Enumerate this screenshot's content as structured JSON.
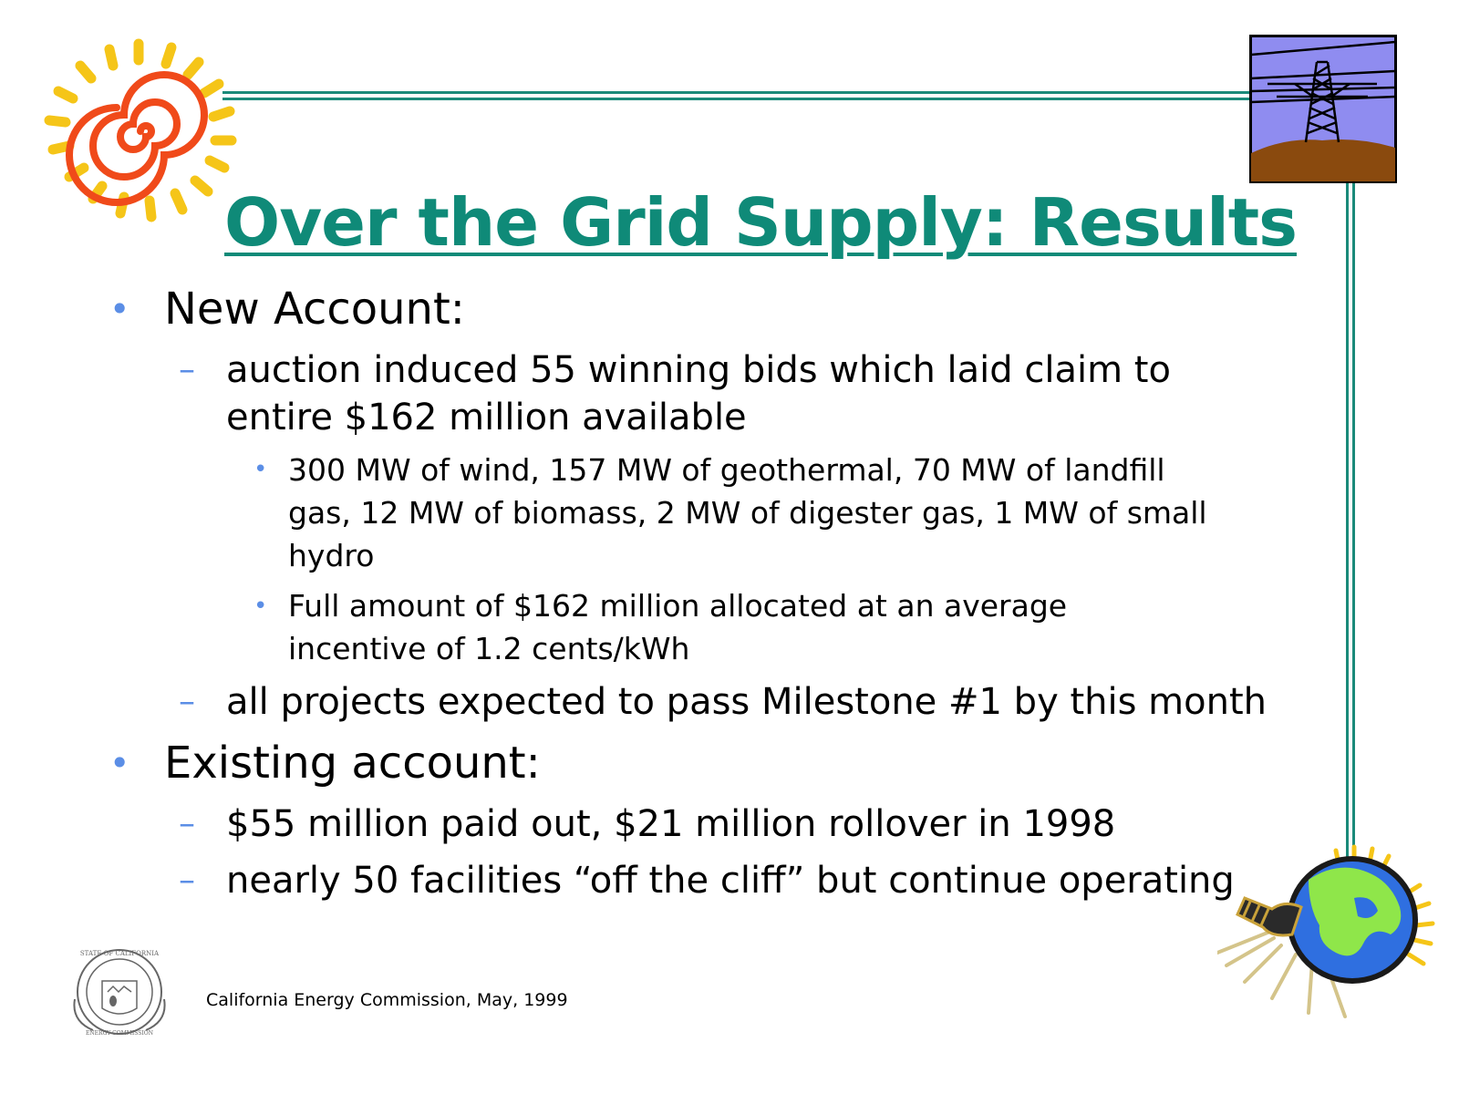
{
  "slide": {
    "title": "Over the Grid Supply: Results",
    "bullets": [
      {
        "text": "New Account:",
        "subs": [
          {
            "lines": [
              "auction induced 55 winning bids which laid claim to",
              "entire $162 million available"
            ],
            "subs": [
              {
                "lines": [
                  "300 MW of wind, 157 MW of geothermal, 70 MW of landfill",
                  "gas, 12 MW of biomass, 2 MW of digester gas, 1 MW of small",
                  "hydro"
                ]
              },
              {
                "lines": [
                  "Full amount of $162 million allocated at an average",
                  "incentive of 1.2 cents/kWh"
                ]
              }
            ]
          },
          {
            "lines": [
              "all projects expected to pass Milestone #1 by this month"
            ]
          }
        ]
      },
      {
        "text": "Existing account:",
        "subs": [
          {
            "lines": [
              "$55 million paid out, $21 million rollover in 1998"
            ]
          },
          {
            "lines": [
              "nearly 50 facilities “off the cliff” but continue operating"
            ]
          }
        ]
      }
    ],
    "footer": "California Energy Commission, May, 1999",
    "seal_text": "STATE OF CALIFORNIA ENERGY COMMISSION"
  },
  "colors": {
    "title": "#0f8a78",
    "bullet": "#5b8ee6",
    "frame": "#1a8a7a"
  },
  "icons": [
    "sun-icon",
    "power-tower-icon",
    "earth-lightbulb-icon",
    "state-seal-icon"
  ]
}
